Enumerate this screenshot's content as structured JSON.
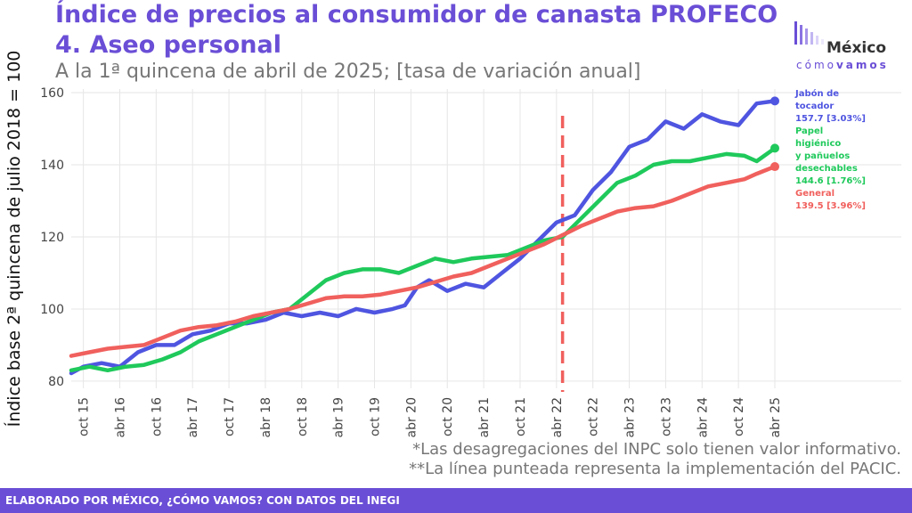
{
  "header": {
    "title_line1": "Índice de precios al consumidor de canasta PROFECO",
    "title_line2": "4. Aseo personal",
    "subtitle": "A la 1ª quincena de abril de 2025; [tasa de variación anual]"
  },
  "logo": {
    "name": "México",
    "sub_light": "cómo",
    "sub_bold": "vamos",
    "color": "#6a4ed6"
  },
  "footnotes": [
    "*Las desagregaciones del INPC solo tienen valor informativo.",
    "**La línea punteada representa la implementación del PACIC."
  ],
  "footer": {
    "text": "ELABORADO POR MÉXICO, ¿CÓMO VAMOS? CON DATOS DEL INEGI",
    "color": "#6a4ed6"
  },
  "chart_data": {
    "type": "line",
    "title": "Índice de precios al consumidor de canasta PROFECO",
    "ylabel": "Índice base 2ª quincena de julio 2018 = 100",
    "xlabel": "",
    "ylim": [
      78,
      161
    ],
    "yticks": [
      80,
      100,
      120,
      140,
      160
    ],
    "x_labels": [
      "oct 15",
      "abr 16",
      "oct 16",
      "abr 17",
      "oct 17",
      "abr 18",
      "oct 18",
      "abr 19",
      "oct 19",
      "abr 20",
      "oct 20",
      "abr 21",
      "oct 21",
      "abr 22",
      "oct 22",
      "abr 23",
      "oct 23",
      "abr 24",
      "oct 24",
      "abr 25"
    ],
    "x_start": "2015-08",
    "x_end": "2025-04",
    "grid": true,
    "vline": {
      "x": "2022-05",
      "style": "dashed",
      "color": "#f0605d"
    },
    "series": [
      {
        "name": "Jabón de tocador",
        "color": "#4f55e0",
        "label_lines": [
          "Jabón de",
          "tocador",
          "157.7 [3.03%]"
        ],
        "points": [
          [
            "2015-08",
            82.2
          ],
          [
            "2015-10",
            84
          ],
          [
            "2016-01",
            85
          ],
          [
            "2016-04",
            84
          ],
          [
            "2016-07",
            88
          ],
          [
            "2016-10",
            90
          ],
          [
            "2017-01",
            90
          ],
          [
            "2017-04",
            93
          ],
          [
            "2017-07",
            94
          ],
          [
            "2017-10",
            96
          ],
          [
            "2018-01",
            96
          ],
          [
            "2018-04",
            97
          ],
          [
            "2018-07",
            99
          ],
          [
            "2018-10",
            98
          ],
          [
            "2019-01",
            99
          ],
          [
            "2019-04",
            98
          ],
          [
            "2019-07",
            100
          ],
          [
            "2019-10",
            99
          ],
          [
            "2020-01",
            100
          ],
          [
            "2020-03",
            101
          ],
          [
            "2020-05",
            106
          ],
          [
            "2020-07",
            108
          ],
          [
            "2020-10",
            105
          ],
          [
            "2021-01",
            107
          ],
          [
            "2021-04",
            106
          ],
          [
            "2021-07",
            110
          ],
          [
            "2021-10",
            114
          ],
          [
            "2022-01",
            119
          ],
          [
            "2022-04",
            124
          ],
          [
            "2022-07",
            126
          ],
          [
            "2022-10",
            133
          ],
          [
            "2023-01",
            138
          ],
          [
            "2023-04",
            145
          ],
          [
            "2023-07",
            147
          ],
          [
            "2023-10",
            152
          ],
          [
            "2024-01",
            150
          ],
          [
            "2024-04",
            154
          ],
          [
            "2024-07",
            152
          ],
          [
            "2024-10",
            151
          ],
          [
            "2025-01",
            157
          ],
          [
            "2025-04",
            157.7
          ]
        ]
      },
      {
        "name": "Papel higiénico y pañuelos desechables",
        "color": "#1fc95b",
        "label_lines": [
          "Papel",
          "higiénico",
          "y pañuelos",
          "desechables",
          "144.6 [1.76%]"
        ],
        "points": [
          [
            "2015-08",
            83
          ],
          [
            "2015-11",
            84
          ],
          [
            "2016-02",
            83
          ],
          [
            "2016-05",
            84
          ],
          [
            "2016-08",
            84.5
          ],
          [
            "2016-11",
            86
          ],
          [
            "2017-02",
            88
          ],
          [
            "2017-05",
            91
          ],
          [
            "2017-08",
            93
          ],
          [
            "2017-11",
            95
          ],
          [
            "2018-02",
            97
          ],
          [
            "2018-05",
            99
          ],
          [
            "2018-08",
            100
          ],
          [
            "2018-11",
            104
          ],
          [
            "2019-02",
            108
          ],
          [
            "2019-05",
            110
          ],
          [
            "2019-08",
            111
          ],
          [
            "2019-11",
            111
          ],
          [
            "2020-02",
            110
          ],
          [
            "2020-05",
            112
          ],
          [
            "2020-08",
            114
          ],
          [
            "2020-11",
            113
          ],
          [
            "2021-02",
            114
          ],
          [
            "2021-05",
            114.5
          ],
          [
            "2021-08",
            115
          ],
          [
            "2021-11",
            117
          ],
          [
            "2022-02",
            119
          ],
          [
            "2022-05",
            120
          ],
          [
            "2022-08",
            125
          ],
          [
            "2022-11",
            130
          ],
          [
            "2023-02",
            135
          ],
          [
            "2023-05",
            137
          ],
          [
            "2023-08",
            140
          ],
          [
            "2023-11",
            141
          ],
          [
            "2024-02",
            141
          ],
          [
            "2024-05",
            142
          ],
          [
            "2024-08",
            143
          ],
          [
            "2024-11",
            142.5
          ],
          [
            "2025-01",
            141
          ],
          [
            "2025-04",
            144.6
          ]
        ]
      },
      {
        "name": "General",
        "color": "#f0605d",
        "label_lines": [
          "General",
          "139.5 [3.96%]"
        ],
        "points": [
          [
            "2015-08",
            87
          ],
          [
            "2015-11",
            88
          ],
          [
            "2016-02",
            89
          ],
          [
            "2016-05",
            89.5
          ],
          [
            "2016-08",
            90
          ],
          [
            "2016-11",
            92
          ],
          [
            "2017-02",
            94
          ],
          [
            "2017-05",
            95
          ],
          [
            "2017-08",
            95.5
          ],
          [
            "2017-11",
            96.5
          ],
          [
            "2018-02",
            98
          ],
          [
            "2018-05",
            99
          ],
          [
            "2018-08",
            100
          ],
          [
            "2018-11",
            101.5
          ],
          [
            "2019-02",
            103
          ],
          [
            "2019-05",
            103.5
          ],
          [
            "2019-08",
            103.5
          ],
          [
            "2019-11",
            104
          ],
          [
            "2020-02",
            105
          ],
          [
            "2020-05",
            106
          ],
          [
            "2020-08",
            107.5
          ],
          [
            "2020-11",
            109
          ],
          [
            "2021-02",
            110
          ],
          [
            "2021-05",
            112
          ],
          [
            "2021-08",
            114
          ],
          [
            "2021-11",
            116
          ],
          [
            "2022-02",
            118
          ],
          [
            "2022-05",
            120.5
          ],
          [
            "2022-08",
            123
          ],
          [
            "2022-11",
            125
          ],
          [
            "2023-02",
            127
          ],
          [
            "2023-05",
            128
          ],
          [
            "2023-08",
            128.5
          ],
          [
            "2023-11",
            130
          ],
          [
            "2024-02",
            132
          ],
          [
            "2024-05",
            134
          ],
          [
            "2024-08",
            135
          ],
          [
            "2024-11",
            136
          ],
          [
            "2025-01",
            137.5
          ],
          [
            "2025-04",
            139.5
          ]
        ]
      }
    ]
  }
}
